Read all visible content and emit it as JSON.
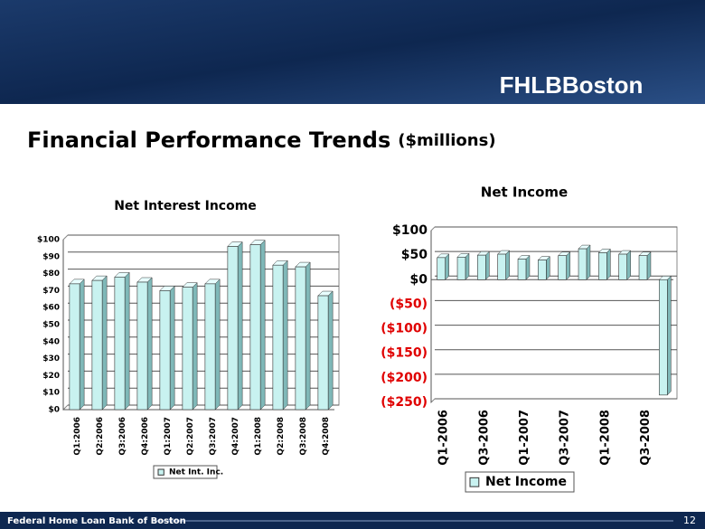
{
  "slide": {
    "title": "Financial Performance Trends",
    "title_unit": "($millions)",
    "logo": "FHLBBoston",
    "footer": "Federal Home Loan Bank of Boston",
    "page": 12
  },
  "chart_data": [
    {
      "type": "bar",
      "title": "Net Interest Income",
      "categories": [
        "Q1:2006",
        "Q2:2006",
        "Q3:2006",
        "Q4:2006",
        "Q1:2007",
        "Q2:2007",
        "Q3:2007",
        "Q4:2007",
        "Q1:2008",
        "Q2:2008",
        "Q3:2008",
        "Q4:2008"
      ],
      "series": [
        {
          "name": "Net Int. Inc.",
          "color": "#c8f2f0",
          "values": [
            74,
            76,
            78,
            75,
            70,
            72,
            74,
            96,
            97,
            85,
            84,
            67
          ]
        }
      ],
      "ylim": [
        0,
        100
      ],
      "yticks": [
        {
          "value": 0,
          "label": "$0"
        },
        {
          "value": 10,
          "label": "$10"
        },
        {
          "value": 20,
          "label": "$20"
        },
        {
          "value": 30,
          "label": "$30"
        },
        {
          "value": 40,
          "label": "$40"
        },
        {
          "value": 50,
          "label": "$50"
        },
        {
          "value": 60,
          "label": "$60"
        },
        {
          "value": 70,
          "label": "$70"
        },
        {
          "value": 80,
          "label": "$80"
        },
        {
          "value": 90,
          "label": "$90"
        },
        {
          "value": 100,
          "label": "$100"
        }
      ],
      "grid": true,
      "legend": "bottom"
    },
    {
      "type": "bar",
      "title": "Net Income",
      "categories": [
        "Q1-2006",
        null,
        "Q3-2006",
        null,
        "Q1-2007",
        null,
        "Q3-2007",
        null,
        "Q1-2008",
        null,
        "Q3-2008",
        null
      ],
      "series": [
        {
          "name": "Net Income",
          "color": "#c8f2f0",
          "values": [
            45,
            46,
            50,
            52,
            42,
            40,
            49,
            63,
            55,
            52,
            49,
            -235
          ]
        }
      ],
      "ylim": [
        -250,
        100
      ],
      "yticks": [
        {
          "value": 100,
          "label": "$100"
        },
        {
          "value": 50,
          "label": "$50"
        },
        {
          "value": 0,
          "label": "$0"
        },
        {
          "value": -50,
          "label": "($50)"
        },
        {
          "value": -100,
          "label": "($100)"
        },
        {
          "value": -150,
          "label": "($150)"
        },
        {
          "value": -200,
          "label": "($200)"
        },
        {
          "value": -250,
          "label": "($250)"
        }
      ],
      "grid": true,
      "legend": "bottom"
    }
  ]
}
